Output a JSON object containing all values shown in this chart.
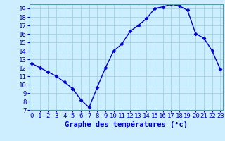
{
  "hours": [
    0,
    1,
    2,
    3,
    4,
    5,
    6,
    7,
    8,
    9,
    10,
    11,
    12,
    13,
    14,
    15,
    16,
    17,
    18,
    19,
    20,
    21,
    22,
    23
  ],
  "temps": [
    12.5,
    12.0,
    11.5,
    11.0,
    10.3,
    9.5,
    8.2,
    7.3,
    9.7,
    12.0,
    14.0,
    14.8,
    16.3,
    17.0,
    17.8,
    19.0,
    19.2,
    19.5,
    19.3,
    18.8,
    16.0,
    15.5,
    14.0,
    11.8
  ],
  "xlabel": "Graphe des températures (°c)",
  "ylim": [
    7,
    19.5
  ],
  "xlim": [
    -0.3,
    23.3
  ],
  "yticks": [
    7,
    8,
    9,
    10,
    11,
    12,
    13,
    14,
    15,
    16,
    17,
    18,
    19
  ],
  "ytick_labels": [
    "7",
    "8",
    "9",
    "10",
    "11",
    "12",
    "13",
    "14",
    "15",
    "16",
    "17",
    "18",
    "19"
  ],
  "xticks": [
    0,
    1,
    2,
    3,
    4,
    5,
    6,
    7,
    8,
    9,
    10,
    11,
    12,
    13,
    14,
    15,
    16,
    17,
    18,
    19,
    20,
    21,
    22,
    23
  ],
  "line_color": "#0000cc",
  "marker": "D",
  "marker_size": 2.5,
  "bg_color": "#cceeff",
  "grid_color": "#99ccdd",
  "axis_label_color": "#0000cc",
  "tick_label_color": "#0000cc",
  "xlabel_fontsize": 7.5,
  "tick_fontsize": 6.5,
  "linewidth": 1.0
}
